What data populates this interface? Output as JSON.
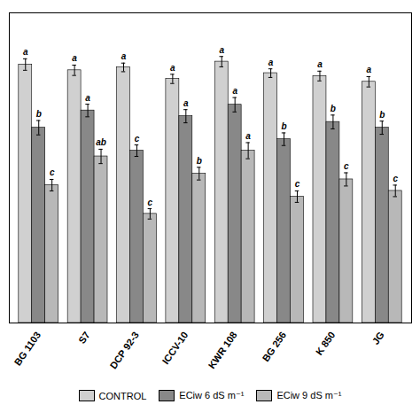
{
  "chart_data": {
    "type": "bar",
    "categories": [
      "BG 1103",
      "S7",
      "DCP 92-3",
      "ICCV-10",
      "KWR 108",
      "BG 256",
      "K 850",
      "JG"
    ],
    "series": [
      {
        "name": "CONTROL",
        "color": "#d0d0d0",
        "values": [
          90,
          88,
          89,
          85,
          91,
          87,
          86,
          84
        ],
        "errors": [
          2.0,
          1.8,
          1.5,
          1.6,
          1.8,
          1.5,
          1.7,
          1.8
        ],
        "letters": [
          "a",
          "a",
          "a",
          "a",
          "a",
          "a",
          "a",
          "a"
        ]
      },
      {
        "name": "ECiw 6 dS m⁻¹",
        "color": "#888888",
        "values": [
          68,
          74,
          60,
          72,
          76,
          64,
          70,
          68
        ],
        "errors": [
          2.5,
          2.2,
          2.0,
          2.3,
          2.5,
          2.2,
          2.4,
          2.3
        ],
        "letters": [
          "b",
          "a",
          "c",
          "a",
          "a",
          "b",
          "b",
          "b"
        ]
      },
      {
        "name": "ECiw 9 dS m⁻¹",
        "color": "#b8b8b8",
        "values": [
          48,
          58,
          38,
          52,
          60,
          44,
          50,
          46
        ],
        "errors": [
          2.0,
          2.5,
          1.8,
          2.2,
          2.8,
          2.0,
          2.3,
          2.0
        ],
        "letters": [
          "c",
          "ab",
          "c",
          "b",
          "a",
          "c",
          "c",
          "c"
        ]
      }
    ],
    "ylim": [
      0,
      108
    ],
    "yticks": [],
    "grid": false,
    "legend": "bottom",
    "tick_labels": "x"
  }
}
